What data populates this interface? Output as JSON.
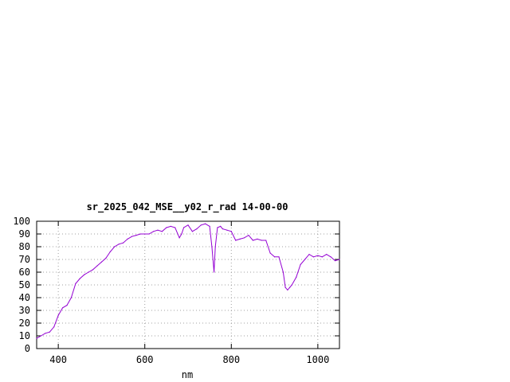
{
  "chart_data": {
    "type": "line",
    "title": "sr_2025_042_MSE__y02_r_rad 14-00-00",
    "xlabel": "nm",
    "ylabel": "",
    "xlim": [
      350,
      1050
    ],
    "ylim": [
      0,
      100
    ],
    "x_ticks": [
      400,
      600,
      800,
      1000
    ],
    "y_ticks": [
      0,
      10,
      20,
      30,
      40,
      50,
      60,
      70,
      80,
      90,
      100
    ],
    "grid": true,
    "line_color": "#9400d3",
    "series": [
      {
        "x": [
          350,
          360,
          370,
          380,
          390,
          400,
          410,
          420,
          430,
          440,
          450,
          460,
          470,
          480,
          490,
          500,
          510,
          520,
          530,
          540,
          550,
          560,
          570,
          580,
          590,
          600,
          610,
          620,
          630,
          640,
          650,
          660,
          670,
          680,
          685,
          690,
          700,
          710,
          720,
          730,
          740,
          750,
          755,
          760,
          763,
          768,
          775,
          780,
          790,
          800,
          810,
          820,
          830,
          840,
          850,
          860,
          870,
          880,
          890,
          900,
          910,
          920,
          925,
          930,
          935,
          940,
          950,
          960,
          970,
          980,
          990,
          1000,
          1010,
          1020,
          1030,
          1040,
          1050
        ],
        "y": [
          8,
          10,
          12,
          13,
          17,
          26,
          32,
          34,
          40,
          51,
          55,
          58,
          60,
          62,
          65,
          68,
          71,
          76,
          80,
          82,
          83,
          86,
          88,
          89,
          90,
          90,
          90,
          92,
          93,
          92,
          95,
          96,
          95,
          87,
          90,
          95,
          97,
          92,
          94,
          97,
          98,
          96,
          80,
          60,
          80,
          95,
          96,
          94,
          93,
          92,
          85,
          86,
          87,
          89,
          85,
          86,
          85,
          85,
          75,
          72,
          72,
          60,
          48,
          46,
          48,
          50,
          56,
          66,
          70,
          74,
          72,
          73,
          72,
          74,
          72,
          69,
          70
        ]
      }
    ]
  }
}
